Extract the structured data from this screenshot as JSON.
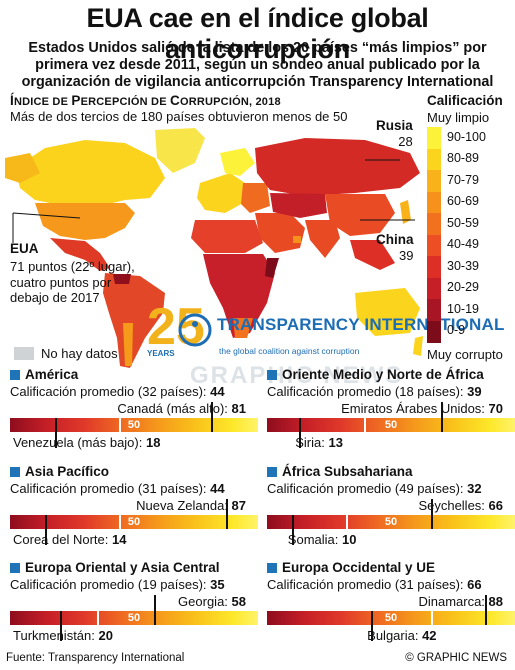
{
  "title": "EUA cae en el índice global anticorrupción",
  "subtitle": "Estados Unidos salió de la lista de los 20 países “más limpios” por primera vez desde 2011, según un sondeo anual publicado por la organización de vigilancia anticorrupción Transparency International",
  "map": {
    "cpi_title_first": "Í",
    "cpi_title_rest": "NDICE DE ",
    "cpi_title_p": "P",
    "cpi_title_p_rest": "ERCEPCIÓN DE ",
    "cpi_title_c": "C",
    "cpi_title_c_rest": "ORRUPCIÓN, 2018",
    "note": "Más de dos tercios de 180 países obtuvieron menos de 50",
    "russia": {
      "name": "Rusia",
      "score": "28"
    },
    "china": {
      "name": "China",
      "score": "39"
    },
    "usa": {
      "name": "EUA",
      "text": "71 puntos (22º lugar), cuatro puntos por debajo de 2017"
    },
    "no_data": "No hay datos",
    "watermark": "GRAPHIC NEWS"
  },
  "logo": {
    "number": "25",
    "years": "YEARS",
    "name": "TRANSPARENCY INTERNATIONAL",
    "tagline": "the global coalition against corruption"
  },
  "legend": {
    "title": "Calificación",
    "top": "Muy limpio",
    "bottom": "Muy corrupto",
    "bands": [
      "90-100",
      "80-89",
      "70-79",
      "60-69",
      "50-59",
      "40-49",
      "30-39",
      "20-29",
      "10-19",
      "0-9"
    ],
    "colors": [
      "#fdf23a",
      "#fbd41d",
      "#f9b21a",
      "#f6921c",
      "#f2711f",
      "#ec4f24",
      "#de2f27",
      "#c71f28",
      "#a81524",
      "#7c0c1a"
    ]
  },
  "mid_label": "50",
  "regions": [
    {
      "name": "América",
      "avg_label": "Calificación promedio (32 países):",
      "avg": 44,
      "high_label": "Canadá (más alto):",
      "high": 81,
      "low_label": "Venezuela (más bajo):",
      "low": 18
    },
    {
      "name": "Oriente Medio y Norte de África",
      "avg_label": "Calificación promedio (18 países):",
      "avg": 39,
      "high_label": "Emiratos Árabes Unidos:",
      "high": 70,
      "low_label": "Siria:",
      "low": 13
    },
    {
      "name": "Asia Pacífico",
      "avg_label": "Calificación promedio (31 países):",
      "avg": 44,
      "high_label": "Nueva Zelanda:",
      "high": 87,
      "low_label": "Corea del Norte:",
      "low": 14
    },
    {
      "name": "África Subsahariana",
      "avg_label": "Calificación promedio (49 países):",
      "avg": 32,
      "high_label": "Seychelles:",
      "high": 66,
      "low_label": "Somalia:",
      "low": 10
    },
    {
      "name": "Europa Oriental y Asia Central",
      "avg_label": "Calificación promedio (19 países):",
      "avg": 35,
      "high_label": "Georgia:",
      "high": 58,
      "low_label": "Turkmenistán:",
      "low": 20
    },
    {
      "name": "Europa Occidental y UE",
      "avg_label": "Calificación promedio (31 países):",
      "avg": 66,
      "high_label": "Dinamarca:",
      "high": 88,
      "low_label": "Bulgaria:",
      "low": 42
    }
  ],
  "footer": {
    "source": "Fuente: Transparency International",
    "credit": "© GRAPHIC NEWS"
  }
}
